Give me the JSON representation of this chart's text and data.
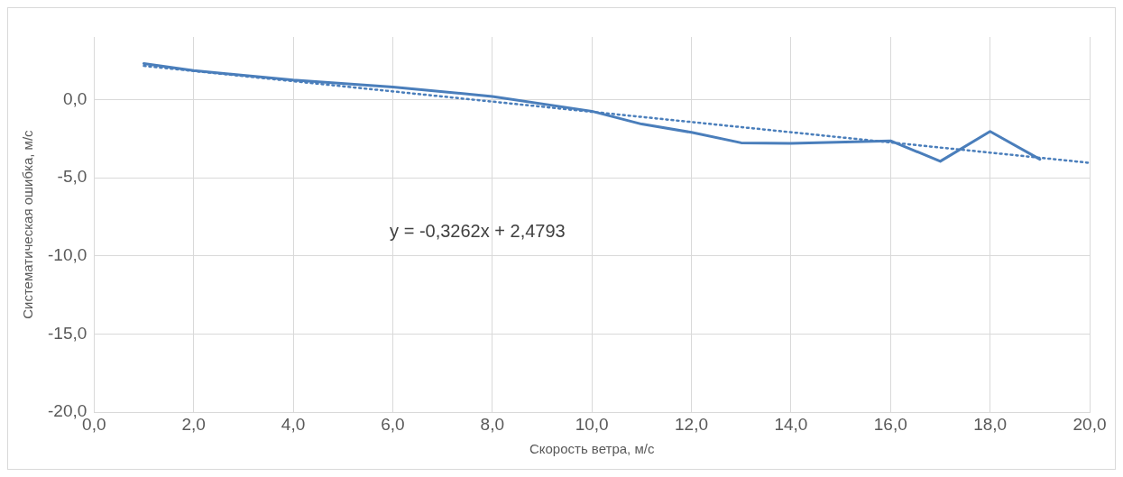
{
  "chart_data": {
    "type": "line",
    "xlabel": "Скорость ветра, м/с",
    "ylabel": "Систематическая ошибка, м/с",
    "x": [
      1,
      2,
      4,
      6,
      8,
      10,
      11,
      12,
      13,
      14,
      16,
      17,
      18,
      19
    ],
    "series": [
      {
        "color": "#4a7ebb",
        "values": [
          2.3,
          1.85,
          1.25,
          0.8,
          0.2,
          -0.75,
          -1.57,
          -2.1,
          -2.77,
          -2.8,
          -2.64,
          -3.95,
          -2.04,
          -3.82
        ]
      },
      {
        "type": "line",
        "color": "#4a7ebb",
        "line_style": "dotted",
        "x": [
          1,
          20
        ],
        "values": [
          2.15,
          -4.05
        ]
      }
    ],
    "annotations": [
      "y = -0,3262x + 2,4793"
    ],
    "xlim": [
      0,
      20
    ],
    "ylim": [
      -20,
      4
    ],
    "xticks": [
      {
        "value": 0,
        "label": "0,0"
      },
      {
        "value": 2,
        "label": "2,0"
      },
      {
        "value": 4,
        "label": "4,0"
      },
      {
        "value": 6,
        "label": "6,0"
      },
      {
        "value": 8,
        "label": "8,0"
      },
      {
        "value": 10,
        "label": "10,0"
      },
      {
        "value": 12,
        "label": "12,0"
      },
      {
        "value": 14,
        "label": "14,0"
      },
      {
        "value": 16,
        "label": "16,0"
      },
      {
        "value": 18,
        "label": "18,0"
      },
      {
        "value": 20,
        "label": "20,0"
      }
    ],
    "yticks": [
      {
        "value": -20,
        "label": "-20,0"
      },
      {
        "value": -15,
        "label": "-15,0"
      },
      {
        "value": -10,
        "label": "-10,0"
      },
      {
        "value": -5,
        "label": "-5,0"
      },
      {
        "value": 0,
        "label": "0,0"
      }
    ],
    "grid": true,
    "marker": "none"
  }
}
